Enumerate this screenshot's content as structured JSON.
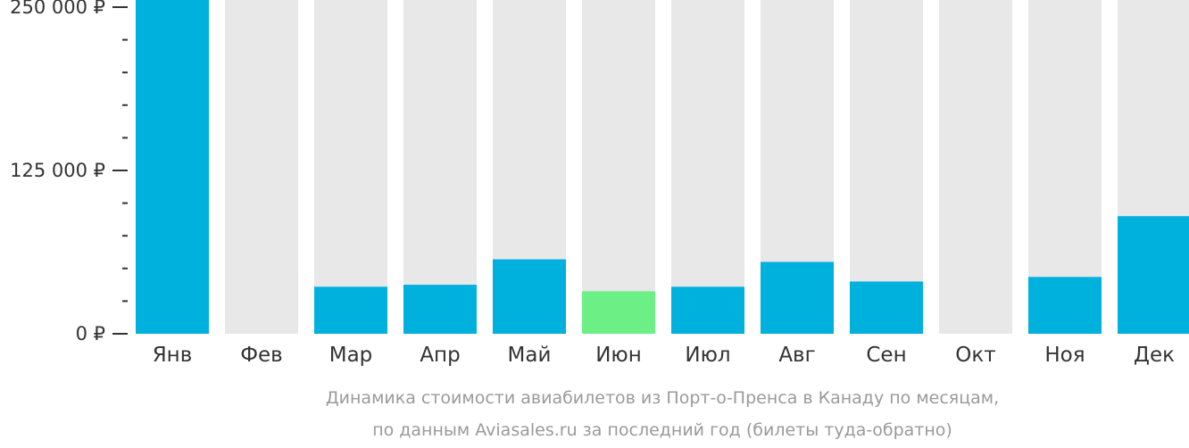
{
  "chart_data": {
    "type": "bar",
    "categories": [
      "Янв",
      "Фев",
      "Мар",
      "Апр",
      "Май",
      "Июн",
      "Июл",
      "Авг",
      "Сен",
      "Окт",
      "Ноя",
      "Дек"
    ],
    "values": [
      257000,
      null,
      36000,
      37500,
      57000,
      32500,
      36000,
      55000,
      40000,
      null,
      43500,
      90000
    ],
    "highlight_index": 5,
    "ylim": [
      0,
      250000
    ],
    "y_tick_labels": [
      "0 ₽",
      "125 000 ₽",
      "250 000 ₽"
    ],
    "y_tick_values": [
      0,
      125000,
      250000
    ],
    "minor_ticks_per_major": 5,
    "caption_line1": "Динамика стоимости авиабилетов из Порт-о-Пренса в Канаду по месяцам,",
    "caption_line2": "по данным Aviasales.ru за последний год (билеты туда-обратно)",
    "colors": {
      "bar": "#00b0dd",
      "highlight": "#6cf086",
      "background_column": "#e8e8e8",
      "axis": "#333333",
      "caption": "#9a9a9a"
    }
  }
}
